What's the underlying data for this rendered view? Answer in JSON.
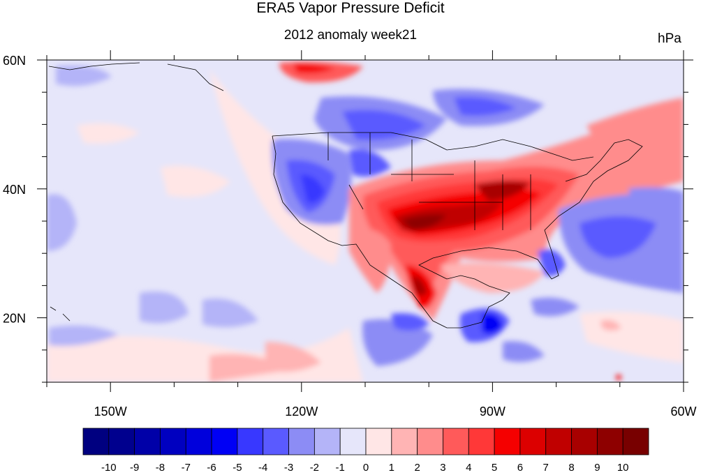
{
  "title": "ERA5 Vapor Pressure Deficit",
  "subtitle": "2012 anomaly week21",
  "units": "hPa",
  "map": {
    "lon_range": [
      -160,
      -60
    ],
    "lat_range": [
      10,
      60
    ],
    "lon_tick_labels": [
      "150W",
      "120W",
      "90W",
      "60W"
    ],
    "lon_tick_values": [
      -150,
      -120,
      -90,
      -60
    ],
    "lat_tick_labels": [
      "60N",
      "40N",
      "20N"
    ],
    "lat_tick_values": [
      60,
      40,
      20
    ],
    "region": "North America and eastern Pacific / western Atlantic"
  },
  "colorbar": {
    "labels": [
      "-10",
      "-9",
      "-8",
      "-7",
      "-6",
      "-5",
      "-4",
      "-3",
      "-2",
      "-1",
      "0",
      "1",
      "2",
      "3",
      "4",
      "5",
      "6",
      "7",
      "8",
      "9",
      "10"
    ],
    "colors": [
      "#000080",
      "#00008e",
      "#0000a8",
      "#0000c0",
      "#0000dc",
      "#0000f5",
      "#3838ff",
      "#5a5aff",
      "#8c8cf5",
      "#b4b4f8",
      "#e6e6fa",
      "#ffe6e6",
      "#ffb4b4",
      "#ff8c8c",
      "#ff5a5a",
      "#ff3838",
      "#f50000",
      "#dc0000",
      "#c00000",
      "#a80000",
      "#8e0000",
      "#780000"
    ]
  }
}
